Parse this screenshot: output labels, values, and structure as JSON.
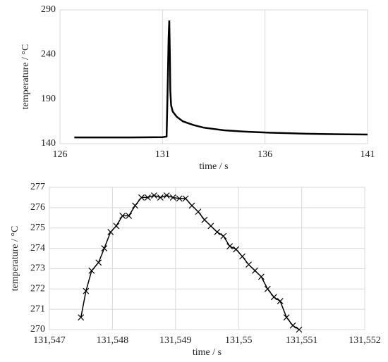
{
  "chart_data": [
    {
      "type": "line",
      "x_label": "time / s",
      "y_label": "temperature / °C",
      "xlim": [
        126,
        141
      ],
      "xticks": [
        126,
        131,
        136,
        141
      ],
      "ylim": [
        140,
        290
      ],
      "yticks": [
        140,
        190,
        240,
        290
      ],
      "grid": "x",
      "markers": false,
      "series": [
        {
          "color": "#000000",
          "x": [
            126.7,
            128,
            129.5,
            131.0,
            131.2,
            131.25,
            131.3,
            131.33,
            131.36,
            131.38,
            131.42,
            131.5,
            131.7,
            132,
            132.5,
            133,
            134,
            135,
            136,
            137,
            138,
            139,
            140,
            141
          ],
          "values": [
            147,
            147,
            147,
            147.3,
            148,
            200,
            260,
            278,
            240,
            200,
            183,
            176,
            170,
            165,
            161,
            158,
            155,
            153.5,
            152.5,
            151.8,
            151.2,
            150.8,
            150.5,
            150.3
          ]
        }
      ]
    },
    {
      "type": "line",
      "x_label": "time / s",
      "y_label": "temperature / °C",
      "xlim": [
        131.547,
        131.552
      ],
      "xticks": [
        {
          "value": 131.547,
          "label": "131,547"
        },
        {
          "value": 131.548,
          "label": "131,548"
        },
        {
          "value": 131.549,
          "label": "131,549"
        },
        {
          "value": 131.55,
          "label": "131,55"
        },
        {
          "value": 131.551,
          "label": "131,551"
        },
        {
          "value": 131.552,
          "label": "131,552"
        }
      ],
      "ylim": [
        270,
        277
      ],
      "yticks": [
        270,
        271,
        272,
        273,
        274,
        275,
        276,
        277
      ],
      "grid": "both",
      "markers": true,
      "series": [
        {
          "color": "#000000",
          "x": [
            131.5475,
            131.54758,
            131.54767,
            131.54778,
            131.54787,
            131.54797,
            131.54806,
            131.54816,
            131.54826,
            131.54836,
            131.54846,
            131.54856,
            131.54866,
            131.54876,
            131.54886,
            131.54896,
            131.54906,
            131.54916,
            131.54926,
            131.54936,
            131.54946,
            131.54956,
            131.54966,
            131.54976,
            131.54986,
            131.54996,
            131.55006,
            131.55016,
            131.55026,
            131.55036,
            131.55046,
            131.55056,
            131.55066,
            131.55076,
            131.55086,
            131.55096
          ],
          "values": [
            270.6,
            271.9,
            272.9,
            273.3,
            274.0,
            274.8,
            275.1,
            275.6,
            275.6,
            276.1,
            276.5,
            276.5,
            276.6,
            276.5,
            276.6,
            276.5,
            276.45,
            276.45,
            276.1,
            275.8,
            275.4,
            275.1,
            274.8,
            274.6,
            274.1,
            273.95,
            273.6,
            273.2,
            272.9,
            272.6,
            272.0,
            271.6,
            271.4,
            270.6,
            270.2,
            270.0
          ]
        }
      ]
    }
  ]
}
